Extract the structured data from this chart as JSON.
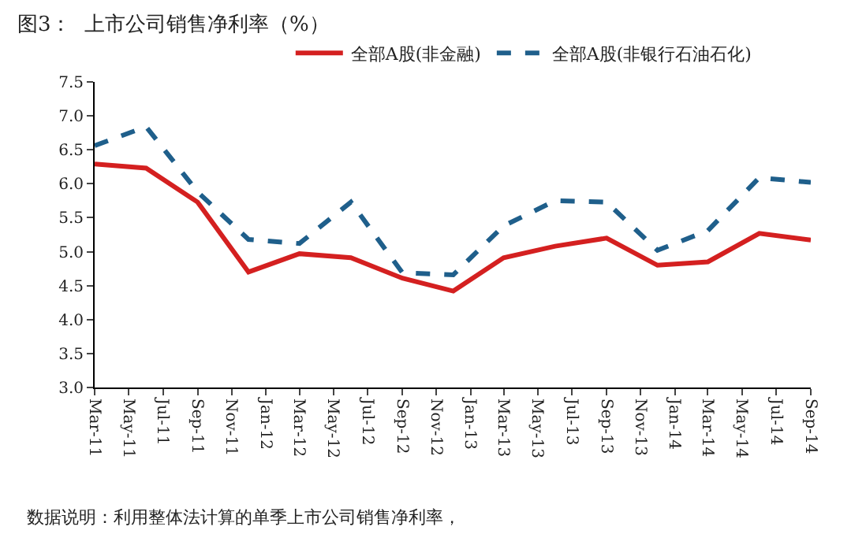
{
  "chart_data": {
    "type": "line",
    "title": "图3：  上市公司销售净利率（%）",
    "x": [
      "2011-03",
      "2011-06",
      "2011-09",
      "2011-12",
      "2012-03",
      "2012-06",
      "2012-09",
      "2012-12",
      "2013-03",
      "2013-06",
      "2013-09",
      "2013-12",
      "2014-03",
      "2014-06",
      "2014-09"
    ],
    "series": [
      {
        "name": "全部A股(非金融)",
        "color": "#d42020",
        "line_style": "solid",
        "values": [
          6.29,
          6.23,
          5.73,
          4.7,
          4.97,
          4.91,
          4.61,
          4.42,
          4.91,
          5.08,
          5.2,
          4.8,
          4.85,
          5.27,
          5.17
        ]
      },
      {
        "name": "全部A股(非银行石油石化)",
        "color": "#1f5f8b",
        "line_style": "dashed",
        "values": [
          6.56,
          6.84,
          5.88,
          5.18,
          5.12,
          5.73,
          4.69,
          4.66,
          5.38,
          5.75,
          5.73,
          5.02,
          5.31,
          6.09,
          6.02
        ]
      }
    ],
    "xlim": [
      "2011-03",
      "2014-09"
    ],
    "xticks": [
      {
        "value": "2011-03",
        "label": "Mar-11"
      },
      {
        "value": "2011-05",
        "label": "May-11"
      },
      {
        "value": "2011-07",
        "label": "Jul-11"
      },
      {
        "value": "2011-09",
        "label": "Sep-11"
      },
      {
        "value": "2011-11",
        "label": "Nov-11"
      },
      {
        "value": "2012-01",
        "label": "Jan-12"
      },
      {
        "value": "2012-03",
        "label": "Mar-12"
      },
      {
        "value": "2012-05",
        "label": "May-12"
      },
      {
        "value": "2012-07",
        "label": "Jul-12"
      },
      {
        "value": "2012-09",
        "label": "Sep-12"
      },
      {
        "value": "2012-11",
        "label": "Nov-12"
      },
      {
        "value": "2013-01",
        "label": "Jan-13"
      },
      {
        "value": "2013-03",
        "label": "Mar-13"
      },
      {
        "value": "2013-05",
        "label": "May-13"
      },
      {
        "value": "2013-07",
        "label": "Jul-13"
      },
      {
        "value": "2013-09",
        "label": "Sep-13"
      },
      {
        "value": "2013-11",
        "label": "Nov-13"
      },
      {
        "value": "2014-01",
        "label": "Jan-14"
      },
      {
        "value": "2014-03",
        "label": "Mar-14"
      },
      {
        "value": "2014-05",
        "label": "May-14"
      },
      {
        "value": "2014-07",
        "label": "Jul-14"
      },
      {
        "value": "2014-09",
        "label": "Sep-14"
      }
    ],
    "ylim": [
      3.0,
      7.5
    ],
    "yticks": [
      {
        "value": 3.0,
        "label": "3.0"
      },
      {
        "value": 3.5,
        "label": "3.5"
      },
      {
        "value": 4.0,
        "label": "4.0"
      },
      {
        "value": 4.5,
        "label": "4.5"
      },
      {
        "value": 5.0,
        "label": "5.0"
      },
      {
        "value": 5.5,
        "label": "5.5"
      },
      {
        "value": 6.0,
        "label": "6.0"
      },
      {
        "value": 6.5,
        "label": "6.5"
      },
      {
        "value": 7.0,
        "label": "7.0"
      },
      {
        "value": 7.5,
        "label": "7.5"
      }
    ],
    "legend": "top",
    "marker": "none",
    "annotations": [
      "数据说明：利用整体法计算的单季上市公司销售净利率，"
    ]
  }
}
